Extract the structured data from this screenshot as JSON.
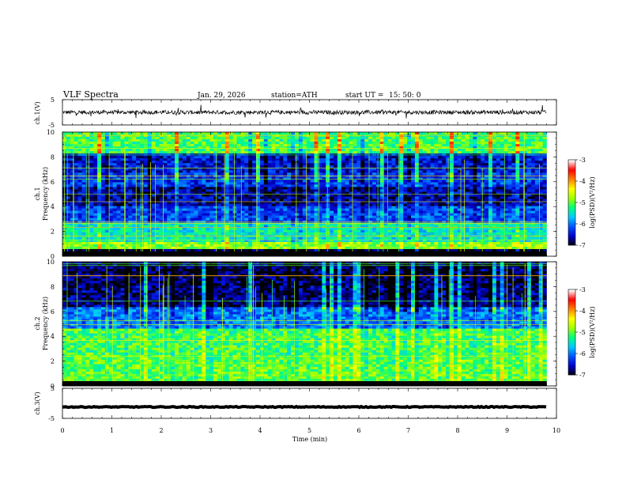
{
  "header": {
    "title": "VLF Spectra",
    "date": "Jan. 29, 2026",
    "station": "station=ATH",
    "start": "start UT =",
    "start_time": "15: 50: 0"
  },
  "chart_data": [
    {
      "type": "line",
      "name": "ch1-waveform",
      "ylabel": "ch.1(V)",
      "ylim": [
        -5,
        5
      ],
      "yticks": [
        "5",
        "-5"
      ],
      "xlim": [
        0,
        10
      ],
      "data_xmax": 9.8,
      "baseline": 0,
      "noise_amplitude": 0.8,
      "line_color": "#000000"
    },
    {
      "type": "heatmap",
      "name": "ch1-spectrogram",
      "ylabel": "ch.1",
      "ylabel2": "Frequency (kHz)",
      "ylim": [
        0,
        10
      ],
      "yticks": [
        "0",
        "2",
        "4",
        "6",
        "8",
        "10"
      ],
      "xlim": [
        0,
        10
      ],
      "data_xmax": 9.8,
      "colorbar": {
        "label": "log(PSD)(V²/Hz)",
        "range": [
          -7,
          -3
        ],
        "ticks": [
          "-3",
          "-4",
          "-5",
          "-6",
          "-7"
        ]
      },
      "bands_khz": [
        {
          "from": 0,
          "to": 0.6,
          "level": -7
        },
        {
          "from": 0.6,
          "to": 1.2,
          "level": -4.6
        },
        {
          "from": 1.2,
          "to": 2.6,
          "level": -5.3
        },
        {
          "from": 2.6,
          "to": 4.0,
          "level": -6.1
        },
        {
          "from": 4.0,
          "to": 5.6,
          "level": -6.6
        },
        {
          "from": 5.6,
          "to": 6.8,
          "level": -6.2
        },
        {
          "from": 6.8,
          "to": 8.2,
          "level": -6.4
        },
        {
          "from": 8.2,
          "to": 10.0,
          "level": -4.9
        }
      ]
    },
    {
      "type": "heatmap",
      "name": "ch2-spectrogram",
      "ylabel": "ch.2",
      "ylabel2": "Frequency (kHz)",
      "ylim": [
        0,
        10
      ],
      "yticks": [
        "0",
        "2",
        "4",
        "6",
        "8",
        "10"
      ],
      "xlim": [
        0,
        10
      ],
      "data_xmax": 9.8,
      "colorbar": {
        "label": "log(PSD)(V²/Hz)",
        "range": [
          -7,
          -3
        ],
        "ticks": [
          "-3",
          "-4",
          "-5",
          "-6",
          "-7"
        ]
      },
      "bands_khz": [
        {
          "from": 0,
          "to": 0.4,
          "level": -7
        },
        {
          "from": 0.4,
          "to": 2.4,
          "level": -4.8
        },
        {
          "from": 2.4,
          "to": 4.6,
          "level": -4.9
        },
        {
          "from": 4.6,
          "to": 6.4,
          "level": -5.9
        },
        {
          "from": 6.4,
          "to": 8.0,
          "level": -6.7
        },
        {
          "from": 8.0,
          "to": 10.0,
          "level": -6.8
        }
      ]
    },
    {
      "type": "line",
      "name": "ch3-waveform",
      "ylabel": "ch.3(V)",
      "ylim": [
        -5,
        5
      ],
      "yticks": [
        "5",
        "-5"
      ],
      "xlim": [
        0,
        10
      ],
      "data_xmax": 9.8,
      "baseline": -1.2,
      "noise_amplitude": 0.15,
      "line_color": "#000000"
    }
  ],
  "xaxis": {
    "label": "Time (min)",
    "range": [
      0,
      10
    ],
    "ticks": [
      "0",
      "1",
      "2",
      "3",
      "4",
      "5",
      "6",
      "7",
      "8",
      "9",
      "10"
    ]
  },
  "colors": {
    "scale": [
      "#000000",
      "#0000c8",
      "#0050ff",
      "#00c8ff",
      "#00ff80",
      "#a0ff00",
      "#ffff00",
      "#ff8000",
      "#ff0000",
      "#ffffff"
    ]
  }
}
